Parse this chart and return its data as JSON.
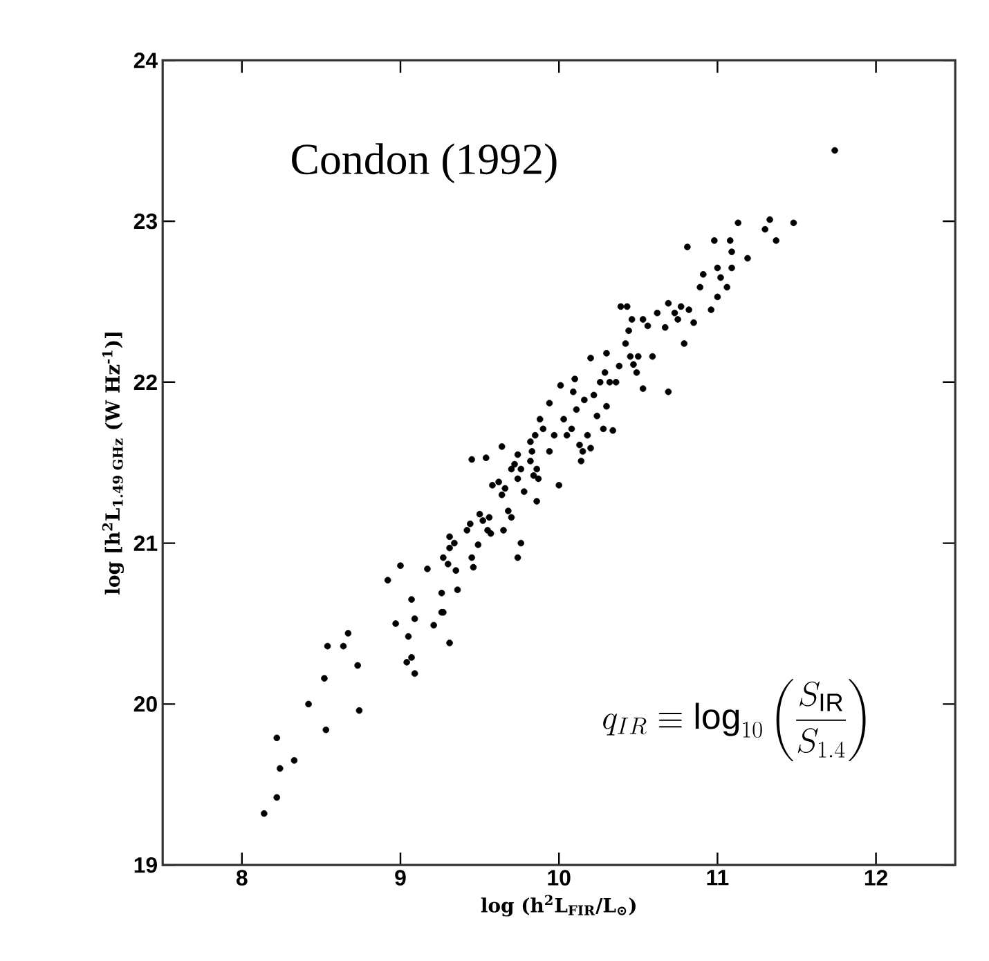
{
  "chart_data": {
    "type": "scatter",
    "xlabel": "log (h$^{2}$L$_{FIR}$/L$_{⊙}$)",
    "ylabel": "log [h$^{2}$L$_{1.49 GHz}$ (W Hz$^{-1}$)]",
    "annotations": [
      "Condon (1992)",
      "q_{IR} \\equiv \\log_{10}\\left(\\frac{S_{\\rm IR}}{S_{1.4}}\\right)"
    ],
    "xlim": [
      7.5,
      12.5
    ],
    "ylim": [
      19,
      24
    ],
    "xticks": [
      8,
      9,
      10,
      11,
      12
    ],
    "yticks": [
      19,
      20,
      21,
      22,
      23,
      24
    ],
    "marker": "circle",
    "series": [
      {
        "color": "#000000",
        "x": [
          8.14,
          8.22,
          8.24,
          8.22,
          8.33,
          8.42,
          8.53,
          8.52,
          8.54,
          8.64,
          8.67,
          8.73,
          8.74,
          8.92,
          9.0,
          8.97,
          9.07,
          9.09,
          9.05,
          9.04,
          9.07,
          9.09,
          9.17,
          9.21,
          9.26,
          9.27,
          9.26,
          9.31,
          9.27,
          9.31,
          9.31,
          9.3,
          9.35,
          9.36,
          9.34,
          9.42,
          9.44,
          9.45,
          9.45,
          9.46,
          9.49,
          9.5,
          9.52,
          9.55,
          9.56,
          9.57,
          9.54,
          9.58,
          9.62,
          9.64,
          9.65,
          9.64,
          9.68,
          9.7,
          9.66,
          9.7,
          9.72,
          9.74,
          9.76,
          9.74,
          9.76,
          9.74,
          9.78,
          9.82,
          9.83,
          9.86,
          9.84,
          9.86,
          9.87,
          9.82,
          9.85,
          9.88,
          9.9,
          9.94,
          9.94,
          9.97,
          10.0,
          10.01,
          10.03,
          10.05,
          10.08,
          10.09,
          10.1,
          10.11,
          10.13,
          10.14,
          10.15,
          10.16,
          10.18,
          10.2,
          10.2,
          10.22,
          10.24,
          10.26,
          10.28,
          10.29,
          10.3,
          10.3,
          10.32,
          10.34,
          10.36,
          10.38,
          10.39,
          10.42,
          10.43,
          10.44,
          10.45,
          10.46,
          10.47,
          10.49,
          10.5,
          10.53,
          10.53,
          10.56,
          10.59,
          10.62,
          10.67,
          10.69,
          10.69,
          10.73,
          10.75,
          10.77,
          10.79,
          10.81,
          10.82,
          10.85,
          10.89,
          10.91,
          10.96,
          10.98,
          11.0,
          11.0,
          11.02,
          11.06,
          11.08,
          11.09,
          11.09,
          11.13,
          11.19,
          11.3,
          11.33,
          11.37,
          11.48,
          11.74
        ],
        "values": [
          19.32,
          19.42,
          19.6,
          19.79,
          19.65,
          20.0,
          19.84,
          20.16,
          20.36,
          20.36,
          20.44,
          20.24,
          19.96,
          20.77,
          20.86,
          20.5,
          20.65,
          20.53,
          20.42,
          20.26,
          20.29,
          20.19,
          20.84,
          20.49,
          20.57,
          20.57,
          20.69,
          20.38,
          20.91,
          20.97,
          21.04,
          20.87,
          20.83,
          20.71,
          21.0,
          21.08,
          21.12,
          21.52,
          20.91,
          20.85,
          20.99,
          21.18,
          21.14,
          21.08,
          21.16,
          21.06,
          21.53,
          21.36,
          21.38,
          21.6,
          21.08,
          21.3,
          21.2,
          21.16,
          21.34,
          21.46,
          21.49,
          21.55,
          21.46,
          21.4,
          21.0,
          20.91,
          21.32,
          21.51,
          21.57,
          21.26,
          21.42,
          21.46,
          21.4,
          21.63,
          21.67,
          21.77,
          21.71,
          21.57,
          21.87,
          21.67,
          21.36,
          21.98,
          21.77,
          21.67,
          21.71,
          21.94,
          22.02,
          21.83,
          21.61,
          21.51,
          21.57,
          21.89,
          21.67,
          21.59,
          22.15,
          21.92,
          21.79,
          22.0,
          21.71,
          22.06,
          22.18,
          21.85,
          22.0,
          21.7,
          22.0,
          22.1,
          22.47,
          22.24,
          22.47,
          22.32,
          22.16,
          22.39,
          22.11,
          22.06,
          22.16,
          21.96,
          22.39,
          22.35,
          22.16,
          22.43,
          22.34,
          22.49,
          21.94,
          22.43,
          22.39,
          22.47,
          22.24,
          22.84,
          22.45,
          22.37,
          22.59,
          22.67,
          22.45,
          22.88,
          22.71,
          22.53,
          22.65,
          22.59,
          22.88,
          22.81,
          22.71,
          22.99,
          22.77,
          22.95,
          23.01,
          22.88,
          22.99,
          23.44
        ]
      }
    ]
  }
}
